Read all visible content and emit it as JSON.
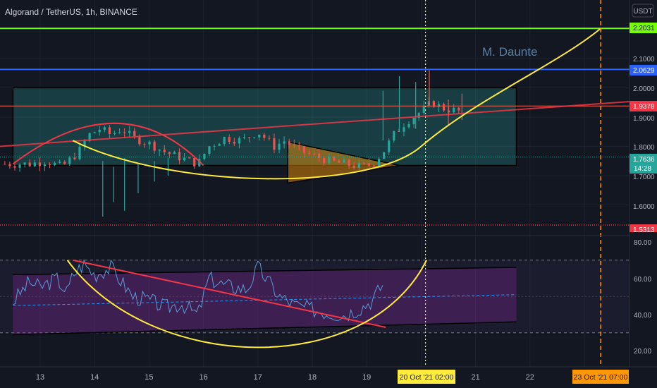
{
  "header": {
    "title": "Algorand / TetherUS, 1h, BINANCE",
    "currency": "USDT",
    "watermark": "M. Daunte"
  },
  "price_axis": {
    "ticks": [
      "2.1000",
      "2.0000",
      "1.9000",
      "1.8000",
      "1.7000",
      "1.6000"
    ]
  },
  "rsi_axis": {
    "ticks": [
      "80.00",
      "60.00",
      "40.00",
      "20.00"
    ]
  },
  "time_axis": {
    "ticks": [
      "13",
      "14",
      "15",
      "16",
      "17",
      "18",
      "19",
      "21",
      "22"
    ],
    "cursor_label": "20 Oct '21   02:00",
    "target_label": "23 Oct '21   07:00"
  },
  "levels": {
    "green": "2.2031",
    "blue": "2.0629",
    "red": "1.9378",
    "current": "1.7636",
    "countdown": "14:28",
    "bottom": "1.5313"
  },
  "colors": {
    "bg": "#131722",
    "up": "#26a69a",
    "down": "#ef5350",
    "green_line": "#76ff03",
    "blue_line": "#2962ff",
    "red_line": "#f23645",
    "curve": "#ffeb3b",
    "cursor": "#ffeb3b",
    "target": "#ff9800",
    "rsi_line": "#5b9bd5"
  },
  "chart_data": {
    "type": "candlestick",
    "symbol": "Algorand / TetherUS",
    "interval": "1h",
    "exchange": "BINANCE",
    "price_range": [
      1.53,
      2.25
    ],
    "time_range_days": [
      12.5,
      23.5
    ],
    "horizontal_levels": [
      2.2031,
      2.0629,
      1.9378,
      1.5313
    ],
    "current_price": 1.7636,
    "box": {
      "day_start": 12.5,
      "day_end": 21.75,
      "price_low": 1.735,
      "price_high": 2.0
    },
    "triangle": {
      "day_start": 17.55,
      "day_end": 19.6,
      "apex": 1.735,
      "top": 1.815,
      "bottom": 1.675
    },
    "cursor_day": 20.08,
    "target_day": 23.3,
    "path_points": [
      [
        12.8,
        1.74
      ],
      [
        13.1,
        1.75
      ],
      [
        13.4,
        1.73
      ],
      [
        13.7,
        1.78
      ],
      [
        13.9,
        1.84
      ],
      [
        14.1,
        1.86
      ],
      [
        14.3,
        1.84
      ],
      [
        14.5,
        1.86
      ],
      [
        14.7,
        1.83
      ],
      [
        15.0,
        1.81
      ],
      [
        15.3,
        1.78
      ],
      [
        15.6,
        1.76
      ],
      [
        15.9,
        1.74
      ],
      [
        16.1,
        1.8
      ],
      [
        16.4,
        1.83
      ],
      [
        16.7,
        1.82
      ],
      [
        17.0,
        1.85
      ],
      [
        17.3,
        1.8
      ],
      [
        17.5,
        1.82
      ],
      [
        17.7,
        1.79
      ],
      [
        18.0,
        1.77
      ],
      [
        18.3,
        1.75
      ],
      [
        18.6,
        1.74
      ],
      [
        18.9,
        1.73
      ],
      [
        19.1,
        1.74
      ],
      [
        19.3,
        1.78
      ],
      [
        19.5,
        1.84
      ],
      [
        19.7,
        1.88
      ],
      [
        20.0,
        1.92
      ],
      [
        20.2,
        1.95
      ],
      [
        20.4,
        1.93
      ],
      [
        20.7,
        1.92
      ]
    ],
    "rsi": {
      "range": [
        10,
        90
      ],
      "overbought": 70,
      "oversold": 30,
      "middle": 50,
      "points": [
        [
          12.5,
          47
        ],
        [
          12.8,
          58
        ],
        [
          13.0,
          55
        ],
        [
          13.3,
          60
        ],
        [
          13.5,
          52
        ],
        [
          13.6,
          62
        ],
        [
          13.8,
          68
        ],
        [
          14.0,
          62
        ],
        [
          14.3,
          66
        ],
        [
          14.5,
          58
        ],
        [
          14.7,
          50
        ],
        [
          15.0,
          48
        ],
        [
          15.3,
          44
        ],
        [
          15.6,
          46
        ],
        [
          15.9,
          40
        ],
        [
          16.1,
          60
        ],
        [
          16.4,
          56
        ],
        [
          16.8,
          54
        ],
        [
          17.0,
          66
        ],
        [
          17.2,
          58
        ],
        [
          17.4,
          50
        ],
        [
          17.7,
          45
        ],
        [
          18.0,
          43
        ],
        [
          18.3,
          41
        ],
        [
          18.6,
          40
        ],
        [
          18.9,
          44
        ],
        [
          19.1,
          48
        ],
        [
          19.3,
          57
        ]
      ]
    }
  }
}
